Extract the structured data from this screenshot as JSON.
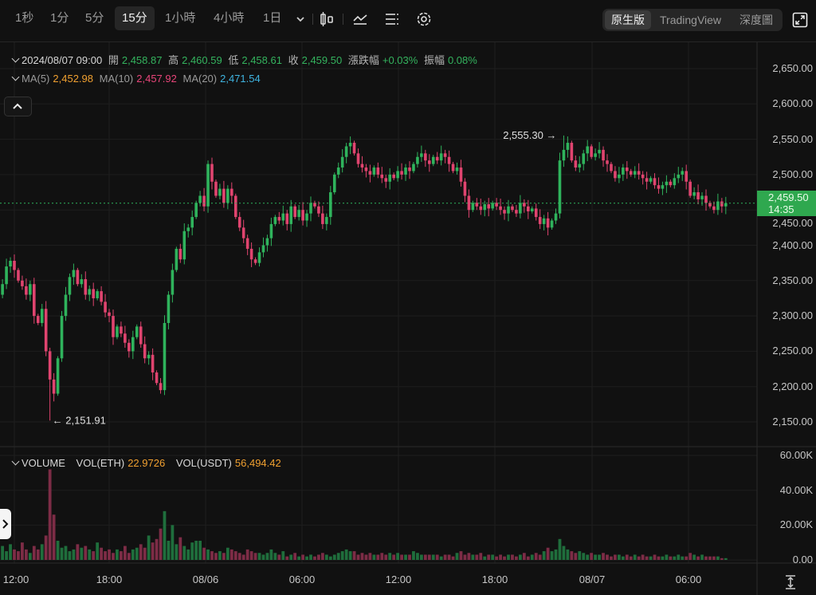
{
  "toolbar": {
    "intervals": [
      {
        "label": "1秒"
      },
      {
        "label": "1分"
      },
      {
        "label": "5分"
      },
      {
        "label": "15分",
        "selected": true
      },
      {
        "label": "1小時"
      },
      {
        "label": "4小時"
      },
      {
        "label": "1日"
      }
    ],
    "icons": [
      "chevron-down-icon",
      "candlestick-type-icon",
      "indicator-icon",
      "list-settings-icon",
      "gear-icon"
    ],
    "views": [
      {
        "label": "原生版",
        "selected": true
      },
      {
        "label": "TradingView"
      },
      {
        "label": "深度圖"
      }
    ],
    "fullscreen_icon": "expand-icon"
  },
  "ohlc_info": {
    "datetime": "2024/08/07 09:00",
    "open_label": "開",
    "open": "2,458.87",
    "high_label": "高",
    "high": "2,460.59",
    "low_label": "低",
    "low": "2,458.61",
    "close_label": "收",
    "close": "2,459.50",
    "change_label": "漲跌幅",
    "change": "+0.03%",
    "amplitude_label": "振幅",
    "amplitude": "0.08%"
  },
  "ma_info": {
    "ma5_label": "MA(5)",
    "ma5": "2,452.98",
    "ma10_label": "MA(10)",
    "ma10": "2,457.92",
    "ma20_label": "MA(20)",
    "ma20": "2,471.54"
  },
  "volume_info": {
    "title": "VOLUME",
    "eth_label": "VOL(ETH)",
    "eth": "22.9726",
    "usdt_label": "VOL(USDT)",
    "usdt": "56,494.42"
  },
  "colors": {
    "up": "#2fb35c",
    "down": "#e0446f",
    "up_vol": "#1f6e3c",
    "down_vol": "#7d2c46",
    "ma5": "#f0a030",
    "ma10": "#e8457a",
    "ma20": "#3fb4e0",
    "last_price_bg": "#2fa84f"
  },
  "chart_data": {
    "type": "candlestick",
    "interval": "15分",
    "price_axis": {
      "ticks": [
        "2,650.00",
        "2,600.00",
        "2,550.00",
        "2,500.00",
        "2,450.00",
        "2,400.00",
        "2,350.00",
        "2,300.00",
        "2,250.00",
        "2,200.00",
        "2,150.00"
      ],
      "ylim": [
        2132,
        2688
      ]
    },
    "volume_axis": {
      "ticks": [
        "60.00K",
        "40.00K",
        "20.00K",
        "0.00"
      ],
      "ylim": [
        0,
        60
      ]
    },
    "x_ticks": [
      "12:00",
      "18:00",
      "08/06",
      "06:00",
      "12:00",
      "18:00",
      "08/07",
      "06:00"
    ],
    "last_price": {
      "value": "2,459.50",
      "countdown": "14:35"
    },
    "max_marker": {
      "index": 143,
      "value": "2,555.30"
    },
    "min_marker": {
      "index": 13,
      "value": "2,151.91"
    },
    "close": [
      2330,
      2345,
      2370,
      2378,
      2365,
      2350,
      2342,
      2330,
      2345,
      2300,
      2290,
      2310,
      2250,
      2210,
      2190,
      2240,
      2300,
      2330,
      2355,
      2365,
      2345,
      2352,
      2330,
      2338,
      2325,
      2335,
      2320,
      2305,
      2300,
      2270,
      2285,
      2275,
      2262,
      2250,
      2270,
      2285,
      2260,
      2240,
      2245,
      2220,
      2205,
      2195,
      2290,
      2330,
      2365,
      2395,
      2380,
      2420,
      2425,
      2440,
      2460,
      2470,
      2455,
      2515,
      2490,
      2470,
      2480,
      2460,
      2480,
      2470,
      2440,
      2425,
      2410,
      2395,
      2380,
      2375,
      2390,
      2400,
      2410,
      2430,
      2440,
      2435,
      2445,
      2430,
      2455,
      2440,
      2450,
      2435,
      2445,
      2460,
      2455,
      2445,
      2430,
      2440,
      2475,
      2500,
      2510,
      2525,
      2540,
      2545,
      2530,
      2515,
      2510,
      2505,
      2500,
      2510,
      2500,
      2495,
      2490,
      2500,
      2495,
      2505,
      2500,
      2510,
      2505,
      2515,
      2525,
      2530,
      2520,
      2515,
      2525,
      2520,
      2530,
      2525,
      2515,
      2505,
      2510,
      2490,
      2470,
      2450,
      2460,
      2455,
      2450,
      2458,
      2452,
      2460,
      2455,
      2450,
      2445,
      2455,
      2450,
      2445,
      2460,
      2455,
      2448,
      2452,
      2440,
      2430,
      2438,
      2425,
      2435,
      2445,
      2520,
      2535,
      2545,
      2520,
      2510,
      2515,
      2530,
      2540,
      2525,
      2530,
      2535,
      2520,
      2515,
      2505,
      2495,
      2500,
      2510,
      2505,
      2500,
      2505,
      2500,
      2495,
      2490,
      2495,
      2485,
      2480,
      2485,
      2490,
      2485,
      2495,
      2500,
      2505,
      2490,
      2470,
      2475,
      2465,
      2470,
      2460,
      2455,
      2450,
      2462,
      2455,
      2459.5
    ],
    "volume_k": [
      6,
      8,
      5,
      9,
      6,
      5,
      10,
      6,
      4,
      8,
      6,
      9,
      14,
      52,
      26,
      11,
      7,
      8,
      5,
      6,
      9,
      7,
      8,
      6,
      5,
      10,
      7,
      5,
      6,
      4,
      6,
      5,
      8,
      4,
      6,
      7,
      9,
      7,
      14,
      10,
      12,
      18,
      28,
      11,
      20,
      9,
      13,
      8,
      6,
      10,
      11,
      11,
      7,
      6,
      5,
      4,
      5,
      4,
      7,
      6,
      5,
      4,
      3,
      6,
      5,
      4,
      4,
      3,
      4,
      6,
      4,
      3,
      5,
      2,
      3,
      4,
      2,
      3,
      2,
      3,
      2,
      3,
      4,
      3,
      2,
      3,
      4,
      5,
      6,
      5,
      5,
      3,
      4,
      3,
      4,
      3,
      3,
      4,
      3,
      4,
      3,
      4,
      3,
      3,
      3,
      5,
      4,
      3,
      3,
      3,
      3,
      3,
      2,
      3,
      3,
      2,
      4,
      5,
      3,
      4,
      3,
      3,
      4,
      2,
      3,
      3,
      2,
      3,
      2,
      3,
      3,
      2,
      3,
      4,
      2,
      3,
      4,
      3,
      5,
      7,
      5,
      6,
      12,
      8,
      6,
      5,
      4,
      5,
      4,
      3,
      4,
      3,
      3,
      4,
      3,
      2,
      3,
      3,
      2,
      3,
      2,
      3,
      2,
      3,
      2,
      2,
      3,
      2,
      2,
      3,
      2,
      2,
      3,
      2,
      2,
      4,
      3,
      2,
      3,
      2,
      2,
      2,
      2,
      1,
      1
    ]
  }
}
